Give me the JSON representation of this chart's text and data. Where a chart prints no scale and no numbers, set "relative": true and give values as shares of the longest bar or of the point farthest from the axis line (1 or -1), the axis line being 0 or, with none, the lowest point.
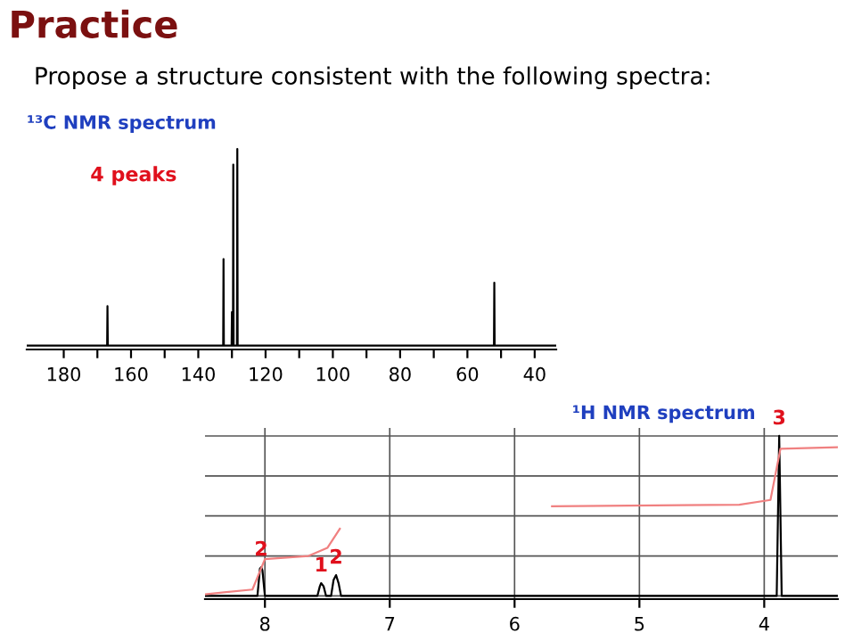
{
  "chart_data": [
    {
      "type": "line",
      "title": "Practice",
      "subtitle": "Propose a structure consistent with the following spectra:",
      "relative": true,
      "legend": false,
      "marker": "none",
      "line_style": "solid",
      "grid": false,
      "annotations": [
        "¹³C NMR spectrum",
        "4 peaks"
      ],
      "xlim": [
        191,
        33.6
      ],
      "xticks": [
        180,
        {
          "value": 170,
          "label": null
        },
        160,
        {
          "value": 150,
          "label": null
        },
        140,
        {
          "value": 130,
          "label": null
        },
        120,
        {
          "value": 110,
          "label": null
        },
        100,
        {
          "value": 90,
          "label": null
        },
        80,
        {
          "value": 70,
          "label": null
        },
        60,
        {
          "value": 50,
          "label": null
        },
        40
      ],
      "series": [
        {
          "color": "#000000",
          "x": [
            191,
            167.1,
            167,
            166.9,
            132.6,
            132.5,
            132.4,
            130.1,
            130,
            129.9,
            129.7,
            129.6,
            129.5,
            128.5,
            128.4,
            128.3,
            52.1,
            52,
            51.9,
            33.6
          ],
          "values": [
            0,
            0,
            0.2,
            0,
            0,
            0.44,
            0,
            0,
            0.17,
            0,
            0,
            0.92,
            0,
            0,
            1,
            0,
            0,
            0.32,
            0,
            0
          ]
        }
      ]
    },
    {
      "type": "line",
      "relative": true,
      "legend": false,
      "marker": "none",
      "line_style": "solid",
      "grid": true,
      "annotations": [
        "¹H NMR spectrum",
        {
          "text": "2",
          "x": 8.03,
          "y": 0.18
        },
        {
          "text": "1",
          "x": 7.55,
          "y": 0.08
        },
        {
          "text": "2",
          "x": 7.43,
          "y": 0.13
        },
        {
          "text": "3",
          "x": 3.88,
          "y": 1
        }
      ],
      "xlim": [
        8.48,
        3.41
      ],
      "xticks": [
        8,
        7,
        6,
        5,
        4
      ],
      "series": [
        {
          "color": "#000000",
          "x": [
            8.48,
            8.06,
            8.04,
            8.03,
            8.02,
            8.0,
            7.58,
            7.56,
            7.55,
            7.53,
            7.51,
            7.47,
            7.45,
            7.43,
            7.41,
            7.39,
            3.9,
            3.88,
            3.86,
            3.41
          ],
          "values": [
            0,
            0,
            0.17,
            0.18,
            0.16,
            0,
            0,
            0.06,
            0.08,
            0.06,
            0,
            0,
            0.1,
            0.13,
            0.08,
            0,
            0,
            1,
            0,
            0
          ]
        },
        {
          "color": "#f08080",
          "x": [
            8.48,
            8.1,
            8.0,
            7.65,
            7.5,
            7.4,
            7.3,
            5.7,
            4.2,
            3.95,
            3.87,
            3.41
          ],
          "values": [
            0.01,
            0.04,
            0.23,
            0.25,
            0.3,
            0.42,
            null,
            0.56,
            0.57,
            0.6,
            0.92,
            0.93
          ]
        }
      ]
    }
  ]
}
